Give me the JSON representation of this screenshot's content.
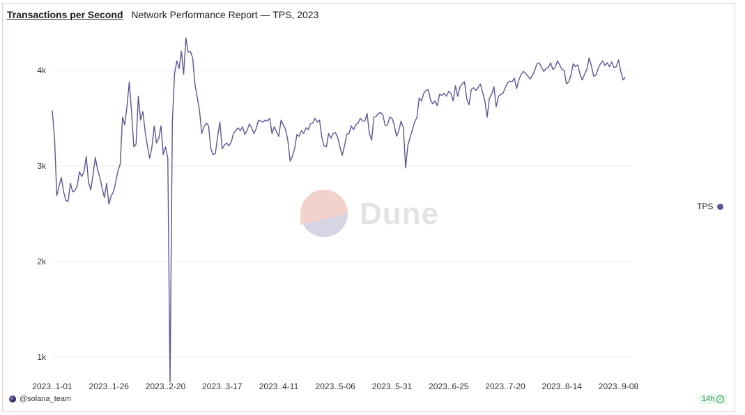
{
  "header": {
    "title": "Transactions per Second",
    "subtitle": "Network Performance Report — TPS, 2023"
  },
  "footer": {
    "user": "@solana_team",
    "badge": "14h"
  },
  "watermark": {
    "text": "Dune"
  },
  "colors": {
    "series": "#5b5596",
    "grid": "#eeeeee"
  },
  "chart_data": {
    "type": "line",
    "title": "Transactions per Second",
    "subtitle": "Network Performance Report — TPS, 2023",
    "xlabel": "",
    "ylabel": "",
    "ylim": [
      700,
      4480
    ],
    "yticks": [
      1000,
      2000,
      3000,
      4000
    ],
    "ytick_labels": [
      "1k",
      "2k",
      "3k",
      "4k"
    ],
    "x_start": "2023-01-01",
    "x_end": "2023-09-14",
    "xticks": [
      "2023-01-01",
      "2023-01-26",
      "2023-02-20",
      "2023-03-17",
      "2023-04-11",
      "2023-05-06",
      "2023-05-31",
      "2023-06-25",
      "2023-07-20",
      "2023-08-14",
      "2023-09-08"
    ],
    "xtick_labels": [
      "2023..1-01",
      "2023..1-26",
      "2023..2-20",
      "2023..3-17",
      "2023..4-11",
      "2023..5-06",
      "2023..5-31",
      "2023..6-25",
      "2023..7-20",
      "2023..8-14",
      "2023..9-08"
    ],
    "legend": "right",
    "grid": true,
    "series": [
      {
        "name": "TPS",
        "values": [
          3580,
          3290,
          2690,
          2790,
          2880,
          2730,
          2640,
          2630,
          2820,
          2730,
          2740,
          2790,
          2940,
          2890,
          2940,
          3100,
          2830,
          2750,
          2910,
          3090,
          2960,
          2880,
          2770,
          2670,
          2820,
          2600,
          2690,
          2730,
          2830,
          2950,
          3020,
          3510,
          3430,
          3630,
          3880,
          3560,
          3200,
          3230,
          3730,
          3480,
          3570,
          3360,
          3210,
          3080,
          3200,
          3420,
          3240,
          3290,
          3420,
          3120,
          3200,
          3080,
          740,
          3460,
          3970,
          4100,
          4020,
          4200,
          3960,
          4340,
          4190,
          4200,
          4130,
          3850,
          3720,
          3580,
          3340,
          3410,
          3450,
          3420,
          3180,
          3120,
          3130,
          3310,
          3460,
          3180,
          3220,
          3240,
          3210,
          3250,
          3340,
          3370,
          3400,
          3370,
          3410,
          3330,
          3370,
          3440,
          3400,
          3340,
          3390,
          3480,
          3470,
          3460,
          3480,
          3470,
          3500,
          3340,
          3410,
          3360,
          3310,
          3480,
          3430,
          3380,
          3270,
          3050,
          3100,
          3180,
          3330,
          3310,
          3370,
          3340,
          3400,
          3380,
          3440,
          3450,
          3500,
          3460,
          3480,
          3300,
          3210,
          3200,
          3340,
          3290,
          3340,
          3350,
          3300,
          3200,
          3110,
          3210,
          3330,
          3340,
          3420,
          3380,
          3430,
          3450,
          3500,
          3470,
          3470,
          3550,
          3340,
          3270,
          3510,
          3520,
          3550,
          3560,
          3530,
          3420,
          3430,
          3510,
          3500,
          3430,
          3310,
          3370,
          3470,
          3400,
          2980,
          3220,
          3300,
          3380,
          3460,
          3510,
          3710,
          3680,
          3760,
          3790,
          3800,
          3690,
          3650,
          3680,
          3630,
          3750,
          3740,
          3760,
          3730,
          3780,
          3760,
          3680,
          3840,
          3730,
          3830,
          3860,
          3880,
          3700,
          3640,
          3800,
          3820,
          3790,
          3820,
          3860,
          3770,
          3680,
          3510,
          3710,
          3750,
          3830,
          3620,
          3730,
          3750,
          3760,
          3820,
          3870,
          3890,
          3880,
          3920,
          3810,
          3900,
          3960,
          3990,
          3970,
          3940,
          3910,
          3950,
          4000,
          4070,
          4080,
          4030,
          3990,
          4020,
          4030,
          4080,
          4010,
          4030,
          4100,
          4060,
          4010,
          4000,
          3860,
          3880,
          3950,
          4070,
          4040,
          4060,
          3960,
          3900,
          3960,
          4010,
          4130,
          4050,
          3940,
          3950,
          4020,
          4070,
          4100,
          4050,
          4080,
          4040,
          4090,
          4030,
          4040,
          4110,
          3990,
          3900,
          3930
        ]
      }
    ]
  }
}
